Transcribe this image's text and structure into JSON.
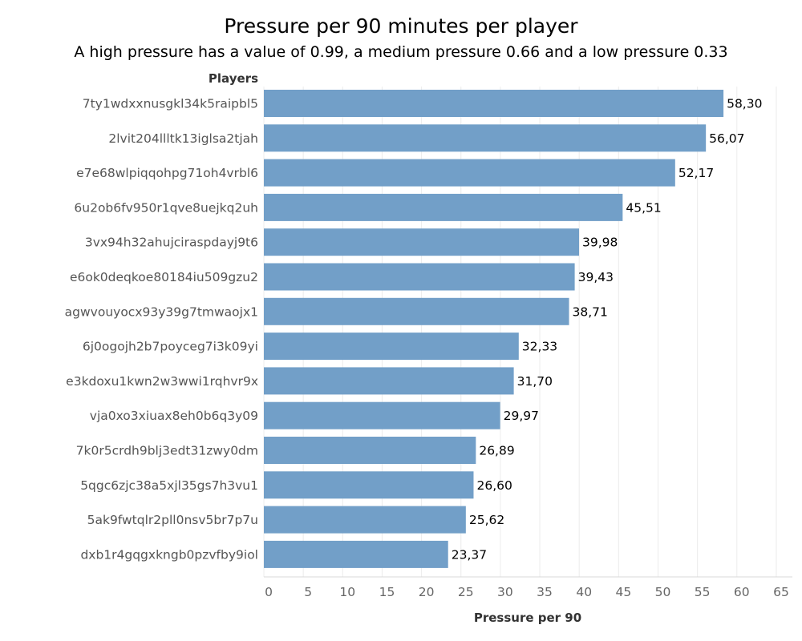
{
  "chart_data": {
    "type": "bar",
    "orientation": "horizontal",
    "title": "Pressure per 90 minutes per player",
    "subtitle": "A high pressure has a value of  0.99, a medium pressure 0.66 and a low pressure 0.33",
    "ylabel": "Players",
    "xlabel": "Pressure per 90",
    "categories": [
      "7ty1wdxxnusgkl34k5raipbl5",
      "2lvit204llltk13iglsa2tjah",
      "e7e68wlpiqqohpg71oh4vrbl6",
      "6u2ob6fv950r1qve8uejkq2uh",
      "3vx94h32ahujciraspdayj9t6",
      "e6ok0deqkoe80184iu509gzu2",
      "agwvouyocx93y39g7tmwaojx1",
      "6j0ogojh2b7poyceg7i3k09yi",
      "e3kdoxu1kwn2w3wwi1rqhvr9x",
      "vja0xo3xiuax8eh0b6q3y09",
      "7k0r5crdh9blj3edt31zwy0dm",
      "5qgc6zjc38a5xjl35gs7h3vu1",
      "5ak9fwtqlr2pll0nsv5br7p7u",
      "dxb1r4gqgxkngb0pzvfby9iol"
    ],
    "values": [
      58.3,
      56.07,
      52.17,
      45.51,
      39.98,
      39.43,
      38.71,
      32.33,
      31.7,
      29.97,
      26.89,
      26.6,
      25.62,
      23.37
    ],
    "value_labels": [
      "58,30",
      "56,07",
      "52,17",
      "45,51",
      "39,98",
      "39,43",
      "38,71",
      "32,33",
      "31,70",
      "29,97",
      "26,89",
      "26,60",
      "25,62",
      "23,37"
    ],
    "xticks": [
      "0",
      "5",
      "10",
      "15",
      "20",
      "25",
      "30",
      "35",
      "40",
      "45",
      "50",
      "55",
      "60",
      "65"
    ],
    "xlim": [
      0,
      67
    ],
    "grid": true,
    "bar_color": "#729fc8"
  }
}
